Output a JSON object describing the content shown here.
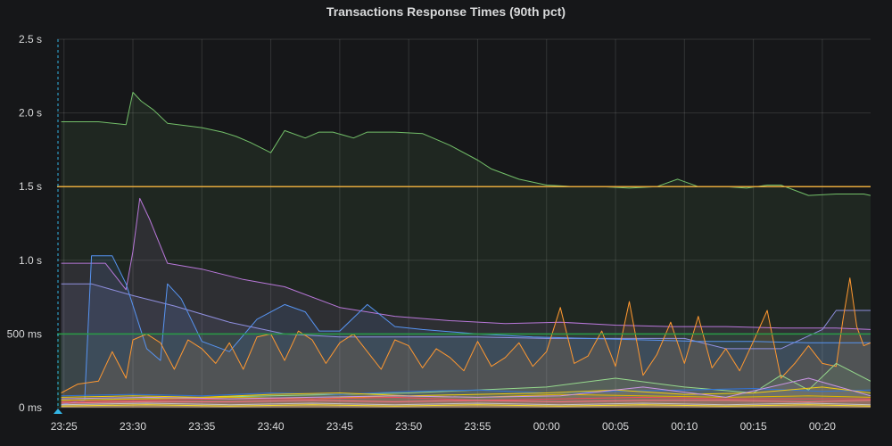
{
  "panel": {
    "title": "Transactions Response Times (90th pct)"
  },
  "chart_data": {
    "type": "line",
    "title": "Transactions Response Times (90th pct)",
    "xlabel": "",
    "ylabel": "",
    "x_ticks": [
      "23:25",
      "23:30",
      "23:35",
      "23:40",
      "23:45",
      "23:50",
      "23:55",
      "00:00",
      "00:05",
      "00:10",
      "00:15",
      "00:20"
    ],
    "y_ticks": [
      "0 ms",
      "500 ms",
      "1.0 s",
      "1.5 s",
      "2.0 s",
      "2.5 s"
    ],
    "x_unit": "minutes from 23:25",
    "xlim": [
      -0.5,
      58.5
    ],
    "ylim": [
      0,
      2.5
    ],
    "y_unit": "s",
    "grid": true,
    "legend": "none",
    "thresholds": [
      {
        "value": 1.5,
        "color": "#e5a93d"
      },
      {
        "value": 0.5,
        "color": "#299c46",
        "fill": "below"
      }
    ],
    "series": [
      {
        "color": "#73bf69",
        "x": [
          -0.2,
          2.5,
          4.5,
          5.0,
          5.6,
          6.5,
          7.5,
          10,
          11.5,
          12.5,
          13.5,
          15.0,
          16.0,
          17.5,
          18.5,
          19.5,
          21,
          22,
          24,
          26,
          28,
          30,
          31,
          33,
          35,
          37,
          39,
          41,
          43,
          44.5,
          46,
          48,
          49.5,
          51,
          52,
          54,
          56,
          58,
          58.5
        ],
        "values": [
          1.94,
          1.94,
          1.92,
          2.14,
          2.08,
          2.02,
          1.93,
          1.9,
          1.87,
          1.84,
          1.8,
          1.73,
          1.88,
          1.83,
          1.87,
          1.87,
          1.83,
          1.87,
          1.87,
          1.86,
          1.78,
          1.68,
          1.62,
          1.55,
          1.51,
          1.5,
          1.5,
          1.49,
          1.5,
          1.55,
          1.5,
          1.5,
          1.49,
          1.51,
          1.51,
          1.44,
          1.45,
          1.45,
          1.44
        ]
      },
      {
        "color": "#b877d9",
        "x": [
          -0.2,
          3.0,
          4.5,
          5.0,
          5.5,
          6.2,
          7.5,
          10,
          13,
          16,
          20,
          24,
          28,
          32,
          36,
          40,
          44,
          48,
          52,
          56,
          58.5
        ],
        "values": [
          0.98,
          0.98,
          0.8,
          1.06,
          1.42,
          1.28,
          0.98,
          0.94,
          0.87,
          0.82,
          0.68,
          0.62,
          0.59,
          0.57,
          0.58,
          0.56,
          0.55,
          0.55,
          0.54,
          0.54,
          0.53
        ]
      },
      {
        "color": "#8f8fdf",
        "x": [
          -0.2,
          2,
          5,
          8,
          12,
          16,
          20,
          25,
          30,
          35,
          40,
          45,
          48,
          52,
          55,
          56,
          58.5
        ],
        "values": [
          0.84,
          0.84,
          0.76,
          0.69,
          0.58,
          0.5,
          0.48,
          0.48,
          0.48,
          0.47,
          0.47,
          0.47,
          0.4,
          0.4,
          0.53,
          0.66,
          0.66
        ]
      },
      {
        "color": "#5794f2",
        "x": [
          -0.2,
          1.5,
          2.0,
          3.5,
          4.5,
          6.0,
          7.0,
          7.5,
          8.5,
          10.0,
          12,
          14,
          16,
          17.5,
          18.5,
          20,
          22,
          24,
          26,
          30,
          34,
          38,
          42,
          46,
          50,
          54,
          58,
          58.5
        ],
        "values": [
          0.02,
          0.05,
          1.03,
          1.03,
          0.84,
          0.4,
          0.32,
          0.84,
          0.74,
          0.45,
          0.38,
          0.6,
          0.7,
          0.65,
          0.52,
          0.52,
          0.7,
          0.55,
          0.53,
          0.5,
          0.48,
          0.47,
          0.46,
          0.45,
          0.45,
          0.44,
          0.44,
          0.44
        ]
      },
      {
        "color": "#ff9830",
        "x": [
          -0.2,
          1.0,
          2.5,
          3.5,
          4.5,
          5.0,
          6.0,
          7.0,
          8.0,
          9.0,
          10.0,
          11.0,
          12.0,
          13.0,
          14.0,
          15.0,
          16.0,
          17.0,
          18.0,
          19.0,
          20.0,
          21.0,
          22.0,
          23.0,
          24.0,
          25.0,
          26.0,
          27.0,
          28.0,
          29.0,
          30.0,
          31.0,
          32.0,
          33.0,
          34.0,
          35.0,
          36.0,
          37.0,
          38.0,
          39.0,
          40.0,
          41.0,
          42.0,
          43.0,
          44.0,
          45.0,
          46.0,
          47.0,
          48.0,
          49.0,
          50.0,
          51.0,
          52.0,
          53.0,
          54.0,
          55.0,
          56.0,
          56.5,
          57.0,
          57.5,
          58.0,
          58.5
        ],
        "values": [
          0.1,
          0.16,
          0.18,
          0.38,
          0.2,
          0.46,
          0.5,
          0.44,
          0.26,
          0.46,
          0.4,
          0.3,
          0.44,
          0.26,
          0.48,
          0.5,
          0.32,
          0.52,
          0.46,
          0.3,
          0.44,
          0.5,
          0.38,
          0.26,
          0.46,
          0.42,
          0.27,
          0.4,
          0.34,
          0.25,
          0.45,
          0.28,
          0.34,
          0.44,
          0.28,
          0.38,
          0.68,
          0.3,
          0.35,
          0.52,
          0.28,
          0.72,
          0.22,
          0.36,
          0.58,
          0.3,
          0.62,
          0.27,
          0.4,
          0.25,
          0.45,
          0.66,
          0.2,
          0.3,
          0.42,
          0.3,
          0.28,
          0.6,
          0.88,
          0.55,
          0.42,
          0.44
        ]
      },
      {
        "color": "#96d98d",
        "x": [
          -0.2,
          5,
          10,
          15,
          20,
          25,
          30,
          35,
          40,
          45,
          50,
          52,
          54,
          56,
          58.5
        ],
        "values": [
          0.05,
          0.06,
          0.07,
          0.08,
          0.09,
          0.1,
          0.12,
          0.14,
          0.2,
          0.14,
          0.1,
          0.22,
          0.12,
          0.3,
          0.18
        ]
      },
      {
        "color": "#3274d9",
        "x": [
          -0.2,
          5,
          10,
          15,
          20,
          25,
          30,
          35,
          40,
          45,
          50,
          55,
          58.5
        ],
        "values": [
          0.08,
          0.09,
          0.08,
          0.1,
          0.09,
          0.11,
          0.12,
          0.1,
          0.11,
          0.12,
          0.13,
          0.11,
          0.12
        ]
      },
      {
        "color": "#f2cc0c",
        "x": [
          -0.2,
          5,
          10,
          15,
          20,
          25,
          30,
          35,
          40,
          45,
          50,
          55,
          58.5
        ],
        "values": [
          0.07,
          0.08,
          0.07,
          0.09,
          0.1,
          0.08,
          0.09,
          0.1,
          0.12,
          0.09,
          0.1,
          0.14,
          0.1
        ]
      },
      {
        "color": "#e0b400",
        "x": [
          -0.2,
          6,
          12,
          18,
          24,
          30,
          36,
          42,
          48,
          54,
          58.5
        ],
        "values": [
          0.05,
          0.06,
          0.07,
          0.06,
          0.08,
          0.07,
          0.09,
          0.08,
          0.07,
          0.08,
          0.07
        ]
      },
      {
        "color": "#f2495c",
        "x": [
          -0.2,
          6,
          12,
          18,
          24,
          30,
          36,
          42,
          48,
          54,
          58.5
        ],
        "values": [
          0.04,
          0.05,
          0.06,
          0.06,
          0.07,
          0.05,
          0.06,
          0.07,
          0.06,
          0.06,
          0.06
        ]
      },
      {
        "color": "#ff7383",
        "x": [
          -0.2,
          6,
          12,
          18,
          24,
          30,
          36,
          42,
          48,
          54,
          58.5
        ],
        "values": [
          0.03,
          0.04,
          0.04,
          0.05,
          0.04,
          0.05,
          0.04,
          0.05,
          0.05,
          0.04,
          0.05
        ]
      },
      {
        "color": "#ca95e5",
        "x": [
          -0.2,
          6,
          12,
          18,
          24,
          30,
          36,
          42,
          48,
          54,
          58.5
        ],
        "values": [
          0.06,
          0.07,
          0.06,
          0.07,
          0.08,
          0.07,
          0.08,
          0.14,
          0.07,
          0.2,
          0.08
        ]
      },
      {
        "color": "#c4c4c4",
        "x": [
          -0.2,
          6,
          12,
          18,
          24,
          30,
          36,
          42,
          48,
          54,
          58.5
        ],
        "values": [
          0.02,
          0.03,
          0.02,
          0.03,
          0.02,
          0.03,
          0.02,
          0.03,
          0.02,
          0.03,
          0.02
        ]
      },
      {
        "color": "#fade2a",
        "x": [
          -0.2,
          6,
          12,
          18,
          24,
          30,
          36,
          42,
          48,
          54,
          58.5
        ],
        "values": [
          0.01,
          0.02,
          0.01,
          0.02,
          0.01,
          0.02,
          0.01,
          0.02,
          0.01,
          0.02,
          0.01
        ]
      }
    ]
  }
}
